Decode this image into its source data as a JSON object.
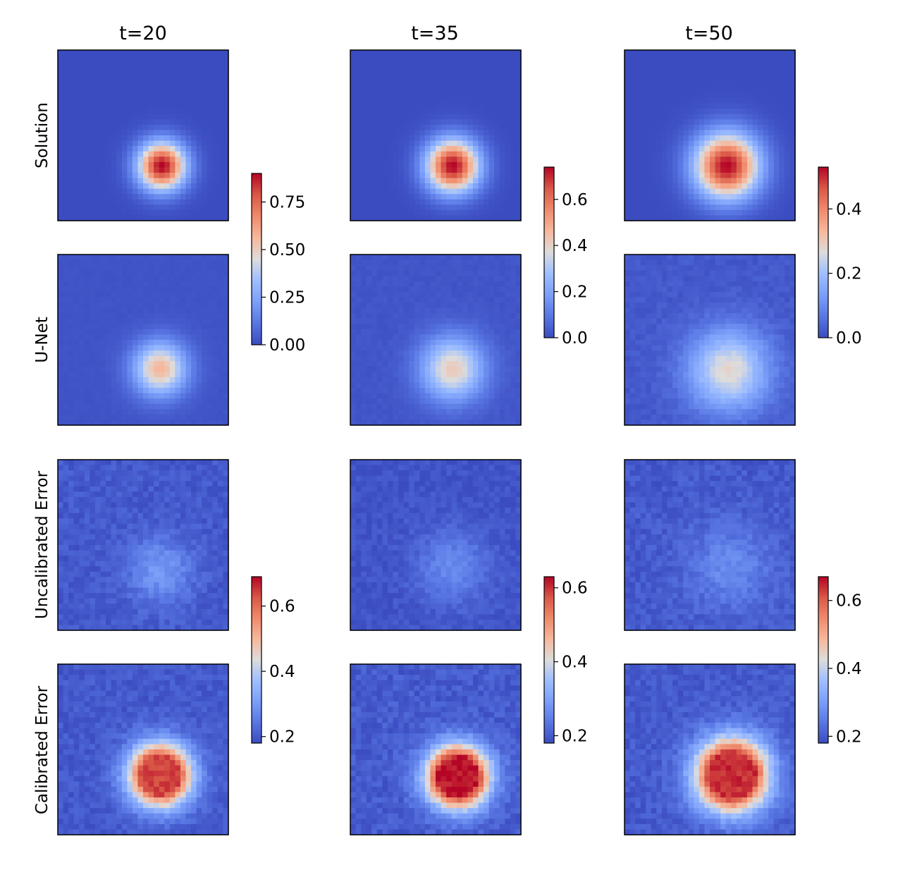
{
  "chart_data": {
    "type": "heatmap",
    "colormap": "coolwarm",
    "grid_resolution": 32,
    "columns": [
      "t=20",
      "t=35",
      "t=50"
    ],
    "rows": [
      "Solution",
      "U-Net",
      "Uncalibrated Error",
      "Calibrated Error"
    ],
    "colorbars": [
      {
        "rows": [
          "Solution",
          "U-Net"
        ],
        "column": "t=20",
        "range": [
          0.0,
          0.9
        ],
        "ticks": [
          0.0,
          0.25,
          0.5,
          0.75
        ],
        "tick_labels": [
          "0.00",
          "0.25",
          "0.50",
          "0.75"
        ]
      },
      {
        "rows": [
          "Solution",
          "U-Net"
        ],
        "column": "t=35",
        "range": [
          0.0,
          0.74
        ],
        "ticks": [
          0.0,
          0.2,
          0.4,
          0.6
        ],
        "tick_labels": [
          "0.0",
          "0.2",
          "0.4",
          "0.6"
        ]
      },
      {
        "rows": [
          "Solution",
          "U-Net"
        ],
        "column": "t=50",
        "range": [
          0.0,
          0.53
        ],
        "ticks": [
          0.0,
          0.2,
          0.4
        ],
        "tick_labels": [
          "0.0",
          "0.2",
          "0.4"
        ]
      },
      {
        "rows": [
          "Uncalibrated Error",
          "Calibrated Error"
        ],
        "column": "t=20",
        "range": [
          0.18,
          0.69
        ],
        "ticks": [
          0.2,
          0.4,
          0.6
        ],
        "tick_labels": [
          "0.2",
          "0.4",
          "0.6"
        ]
      },
      {
        "rows": [
          "Uncalibrated Error",
          "Calibrated Error"
        ],
        "column": "t=35",
        "range": [
          0.18,
          0.63
        ],
        "ticks": [
          0.2,
          0.4,
          0.6
        ],
        "tick_labels": [
          "0.2",
          "0.4",
          "0.6"
        ]
      },
      {
        "rows": [
          "Uncalibrated Error",
          "Calibrated Error"
        ],
        "column": "t=50",
        "range": [
          0.18,
          0.67
        ],
        "ticks": [
          0.2,
          0.4,
          0.6
        ],
        "tick_labels": [
          "0.2",
          "0.4",
          "0.6"
        ]
      }
    ],
    "fields": [
      {
        "row": "Solution",
        "column": "t=20",
        "center": [
          0.61,
          0.68
        ],
        "sigma": 0.1,
        "baseline": 0.0,
        "peak": 0.9,
        "noise": 0
      },
      {
        "row": "Solution",
        "column": "t=35",
        "center": [
          0.6,
          0.68
        ],
        "sigma": 0.11,
        "baseline": 0.0,
        "peak": 0.74,
        "noise": 0
      },
      {
        "row": "Solution",
        "column": "t=50",
        "center": [
          0.6,
          0.68
        ],
        "sigma": 0.135,
        "baseline": 0.0,
        "peak": 0.53,
        "noise": 0
      },
      {
        "row": "U-Net",
        "column": "t=20",
        "center": [
          0.6,
          0.67
        ],
        "sigma": 0.11,
        "baseline": 0.02,
        "peak": 0.57,
        "noise": 0.005
      },
      {
        "row": "U-Net",
        "column": "t=35",
        "center": [
          0.6,
          0.67
        ],
        "sigma": 0.13,
        "baseline": 0.02,
        "peak": 0.42,
        "noise": 0.008
      },
      {
        "row": "U-Net",
        "column": "t=50",
        "center": [
          0.61,
          0.68
        ],
        "sigma": 0.165,
        "baseline": 0.02,
        "peak": 0.28,
        "noise": 0.012
      },
      {
        "row": "Uncalibrated Error",
        "column": "t=20",
        "center": [
          0.6,
          0.65
        ],
        "sigma": 0.13,
        "baseline": 0.2,
        "peak": 0.3,
        "noise": 0.02
      },
      {
        "row": "Uncalibrated Error",
        "column": "t=35",
        "center": [
          0.6,
          0.63
        ],
        "sigma": 0.15,
        "baseline": 0.19,
        "peak": 0.26,
        "noise": 0.015
      },
      {
        "row": "Uncalibrated Error",
        "column": "t=50",
        "center": [
          0.62,
          0.63
        ],
        "sigma": 0.17,
        "baseline": 0.2,
        "peak": 0.27,
        "noise": 0.02
      },
      {
        "row": "Calibrated Error",
        "column": "t=20",
        "center": [
          0.6,
          0.65
        ],
        "sigma": 0.12,
        "baseline": 0.2,
        "peak": 0.64,
        "noise": 0.02,
        "plateau": true
      },
      {
        "row": "Calibrated Error",
        "column": "t=35",
        "center": [
          0.63,
          0.66
        ],
        "sigma": 0.12,
        "baseline": 0.2,
        "peak": 0.62,
        "noise": 0.02,
        "plateau": true
      },
      {
        "row": "Calibrated Error",
        "column": "t=50",
        "center": [
          0.63,
          0.65
        ],
        "sigma": 0.14,
        "baseline": 0.2,
        "peak": 0.64,
        "noise": 0.02,
        "plateau": true
      }
    ]
  }
}
